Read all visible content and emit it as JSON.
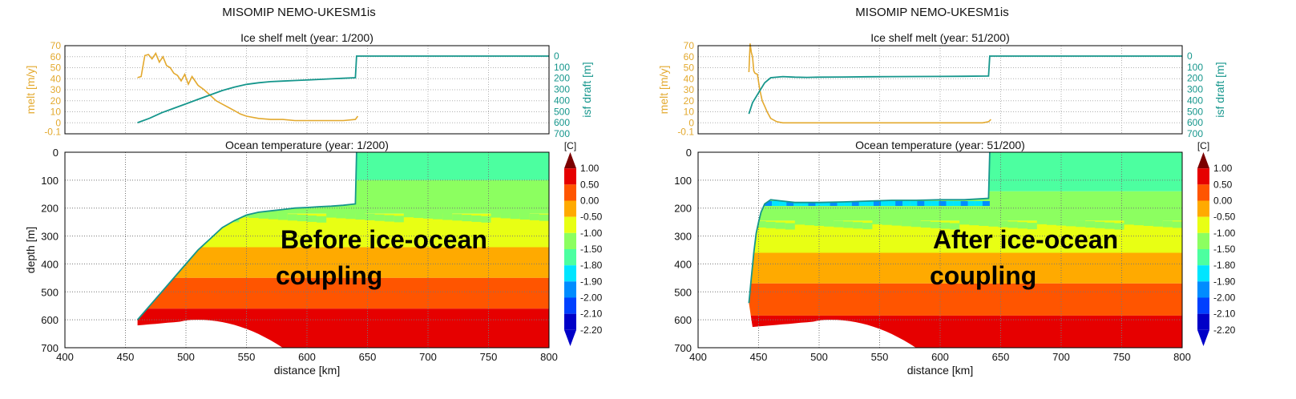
{
  "chart_data": [
    {
      "type": "composite",
      "suptitle": "MISOMIP NEMO-UKESM1is",
      "overlay_text": [
        "Before ice-ocean",
        "coupling"
      ],
      "melt_panel": {
        "title": "Ice shelf melt (year:   1/200)",
        "ylabel_left": "melt [m/y]",
        "ylabel_right": "isf draft [m]",
        "xlim": [
          400,
          800
        ],
        "ylim_left": [
          -10,
          70
        ],
        "left_ticks": [
          "70",
          "60",
          "50",
          "40",
          "30",
          "20",
          "10",
          "0",
          "-0.1"
        ],
        "right_ticks": [
          "0",
          "100",
          "200",
          "300",
          "400",
          "500",
          "600",
          "700"
        ],
        "melt": {
          "x": [
            460,
            463,
            466,
            469,
            472,
            475,
            478,
            481,
            484,
            487,
            490,
            493,
            496,
            499,
            502,
            505,
            510,
            515,
            520,
            525,
            530,
            535,
            540,
            545,
            550,
            560,
            570,
            580,
            590,
            600,
            610,
            620,
            630,
            640,
            642
          ],
          "y": [
            41,
            42,
            61,
            62,
            58,
            63,
            55,
            60,
            52,
            50,
            45,
            43,
            38,
            44,
            35,
            42,
            34,
            30,
            25,
            20,
            17,
            14,
            11,
            8,
            6,
            4,
            3,
            3,
            2,
            2,
            2,
            2,
            2,
            3,
            6
          ]
        },
        "draft": {
          "x": [
            460,
            470,
            480,
            490,
            500,
            510,
            520,
            530,
            540,
            550,
            560,
            570,
            580,
            590,
            600,
            610,
            620,
            630,
            640,
            641,
            800
          ],
          "y": [
            600,
            560,
            510,
            470,
            430,
            390,
            350,
            310,
            280,
            255,
            240,
            230,
            225,
            220,
            215,
            210,
            205,
            200,
            195,
            0,
            0
          ]
        }
      },
      "temp_panel": {
        "title": "Ocean temperature (year:   1/200)",
        "xlabel": "distance [km]",
        "ylabel": "depth [m]",
        "xlim": [
          400,
          800
        ],
        "ylim": [
          700,
          0
        ],
        "xticks": [
          "400",
          "450",
          "500",
          "550",
          "600",
          "650",
          "700",
          "750",
          "800"
        ],
        "yticks": [
          "0",
          "100",
          "200",
          "300",
          "400",
          "500",
          "600",
          "700"
        ],
        "draft": {
          "x": [
            460,
            470,
            480,
            490,
            500,
            510,
            520,
            530,
            540,
            550,
            560,
            570,
            580,
            590,
            600,
            610,
            620,
            630,
            640,
            641
          ],
          "y": [
            600,
            550,
            500,
            450,
            400,
            350,
            310,
            270,
            245,
            225,
            215,
            210,
            205,
            200,
            198,
            195,
            193,
            190,
            185,
            0
          ]
        },
        "cavity_fill": [
          {
            "bin": 0,
            "top": [
              300,
              285,
              320,
              300,
              290,
              300,
              320,
              300,
              305
            ]
          },
          {
            "bin": 1,
            "top": [
              340,
              330,
              345,
              340,
              335,
              340,
              345,
              340,
              340
            ]
          }
        ],
        "layers": [
          {
            "from": 0,
            "to": 100,
            "cls": "-1.8"
          },
          {
            "from": 100,
            "to": 220,
            "cls": "-1.5"
          },
          {
            "from": 220,
            "to": 340,
            "cls": "-1.0"
          },
          {
            "from": 340,
            "to": 450,
            "cls": "-0.5"
          },
          {
            "from": 450,
            "to": 560,
            "cls": "0.0"
          },
          {
            "from": 560,
            "to": 700,
            "cls": "0.5"
          }
        ]
      },
      "colorbar": {
        "unit": "[C]",
        "labels": [
          "1.00",
          "0.50",
          "0.00",
          "-0.50",
          "-1.00",
          "-1.50",
          "-1.80",
          "-1.90",
          "-2.00",
          "-2.10",
          "-2.20"
        ]
      }
    },
    {
      "type": "composite",
      "suptitle": "MISOMIP NEMO-UKESM1is",
      "overlay_text": [
        "After ice-ocean",
        "coupling"
      ],
      "melt_panel": {
        "title": "Ice shelf melt (year:  51/200)",
        "ylabel_left": "melt [m/y]",
        "ylabel_right": "isf draft [m]",
        "xlim": [
          400,
          800
        ],
        "ylim_left": [
          -10,
          70
        ],
        "left_ticks": [
          "70",
          "60",
          "50",
          "40",
          "30",
          "20",
          "10",
          "0",
          "-0.1"
        ],
        "right_ticks": [
          "0",
          "100",
          "200",
          "300",
          "400",
          "500",
          "600",
          "700"
        ],
        "melt": {
          "x": [
            442,
            443,
            444,
            445,
            446,
            447,
            449,
            451,
            453,
            455,
            457,
            460,
            465,
            470,
            480,
            490,
            500,
            520,
            540,
            560,
            580,
            600,
            620,
            635,
            640,
            642
          ],
          "y": [
            46,
            72,
            64,
            60,
            47,
            45,
            44,
            30,
            20,
            15,
            10,
            4,
            1,
            0,
            0,
            0,
            0,
            0,
            0,
            0,
            0,
            0,
            0,
            0,
            1,
            3
          ]
        },
        "draft": {
          "x": [
            442,
            445,
            450,
            455,
            460,
            470,
            480,
            490,
            500,
            520,
            540,
            560,
            580,
            600,
            620,
            640,
            641,
            800
          ],
          "y": [
            520,
            420,
            330,
            240,
            195,
            185,
            190,
            192,
            190,
            188,
            186,
            185,
            184,
            183,
            182,
            180,
            0,
            0
          ]
        }
      },
      "temp_panel": {
        "title": "Ocean temperature (year:  51/200)",
        "xlabel": "distance [km]",
        "ylabel": "",
        "xlim": [
          400,
          800
        ],
        "ylim": [
          700,
          0
        ],
        "xticks": [
          "400",
          "450",
          "500",
          "550",
          "600",
          "650",
          "700",
          "750",
          "800"
        ],
        "yticks": [
          "0",
          "100",
          "200",
          "300",
          "400",
          "500",
          "600",
          "700"
        ],
        "draft": {
          "x": [
            442,
            444,
            446,
            448,
            450,
            452,
            455,
            460,
            470,
            480,
            500,
            520,
            540,
            560,
            580,
            600,
            620,
            640,
            641
          ],
          "y": [
            540,
            450,
            360,
            290,
            250,
            215,
            185,
            170,
            175,
            180,
            180,
            178,
            175,
            172,
            172,
            170,
            170,
            165,
            0
          ]
        },
        "layers": [
          {
            "from": 0,
            "to": 140,
            "cls": "-1.8"
          },
          {
            "from": 140,
            "to": 245,
            "cls": "-1.5"
          },
          {
            "from": 245,
            "to": 360,
            "cls": "-1.0"
          },
          {
            "from": 360,
            "to": 470,
            "cls": "-0.5"
          },
          {
            "from": 470,
            "to": 585,
            "cls": "0.0"
          },
          {
            "from": 585,
            "to": 700,
            "cls": "0.5"
          }
        ]
      },
      "colorbar": {
        "unit": "[C]",
        "labels": [
          "1.00",
          "0.50",
          "0.00",
          "-0.50",
          "-1.00",
          "-1.50",
          "-1.80",
          "-1.90",
          "-2.00",
          "-2.10",
          "-2.20"
        ]
      }
    }
  ],
  "colors": {
    "melt": "#e3a92e",
    "draft": "#15968c",
    "grid": "#b0b0b0",
    "bands": {
      "1.0": "#7b0000",
      "0.5": "#e60000",
      "0.0": "#ff5500",
      "-0.5": "#ffaa00",
      "-1.0": "#e8ff14",
      "-1.5": "#8cff60",
      "-1.8": "#4cffa0",
      "-1.9": "#00e5ff",
      "-2.0": "#008cff",
      "-2.1": "#0040ff",
      "-2.2": "#0000c8"
    }
  }
}
